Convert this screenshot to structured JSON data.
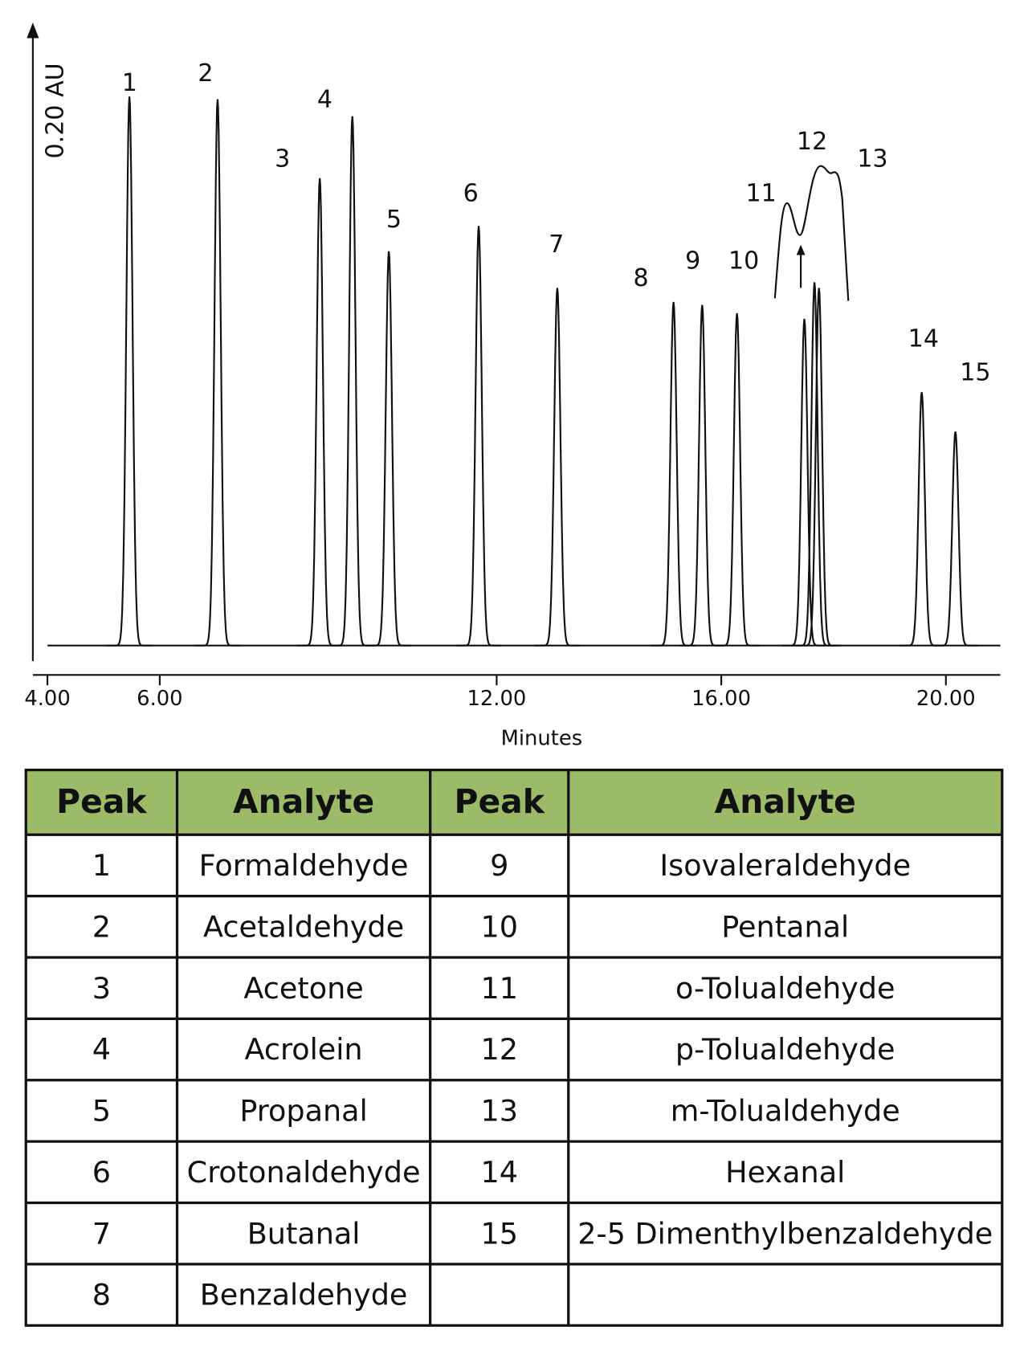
{
  "chart_data": {
    "type": "chromatogram",
    "y_label": "0.20 AU",
    "x_label": "Minutes",
    "labels": [
      "1",
      "2",
      "3",
      "4",
      "5",
      "6",
      "7",
      "8",
      "9",
      "10",
      "11",
      "12",
      "13",
      "14",
      "15"
    ],
    "x": [
      5.46,
      7.03,
      8.85,
      9.43,
      10.08,
      11.68,
      13.08,
      15.15,
      15.66,
      16.28,
      17.48,
      17.66,
      17.74,
      19.57,
      20.17
    ],
    "values": [
      0.195,
      0.194,
      0.166,
      0.188,
      0.14,
      0.149,
      0.127,
      0.122,
      0.121,
      0.118,
      0.116,
      0.129,
      0.127,
      0.09,
      0.076
    ],
    "color": "#111111",
    "xlim": [
      3.74,
      20.97
    ],
    "ylim": [
      0,
      0.22
    ],
    "xticks": [
      {
        "value": 4,
        "label": "4.00"
      },
      {
        "value": 6,
        "label": "6.00"
      },
      {
        "value": 12,
        "label": "12.00"
      },
      {
        "value": 16,
        "label": "16.00"
      },
      {
        "value": 20,
        "label": "20.00"
      }
    ]
  },
  "table": {
    "header": [
      "Peak",
      "Analyte",
      "Peak",
      "Analyte"
    ],
    "rows": [
      [
        "1",
        "Formaldehyde",
        "9",
        "Isovaleraldehyde"
      ],
      [
        "2",
        "Acetaldehyde",
        "10",
        "Pentanal"
      ],
      [
        "3",
        "Acetone",
        "11",
        "o-Tolualdehyde"
      ],
      [
        "4",
        "Acrolein",
        "12",
        "p-Tolualdehyde"
      ],
      [
        "5",
        "Propanal",
        "13",
        "m-Tolualdehyde"
      ],
      [
        "6",
        "Crotonaldehyde",
        "14",
        "Hexanal"
      ],
      [
        "7",
        "Butanal",
        "15",
        "2-5 Dimenthylbenzaldehyde"
      ],
      [
        "8",
        "Benzaldehyde"
      ]
    ]
  }
}
